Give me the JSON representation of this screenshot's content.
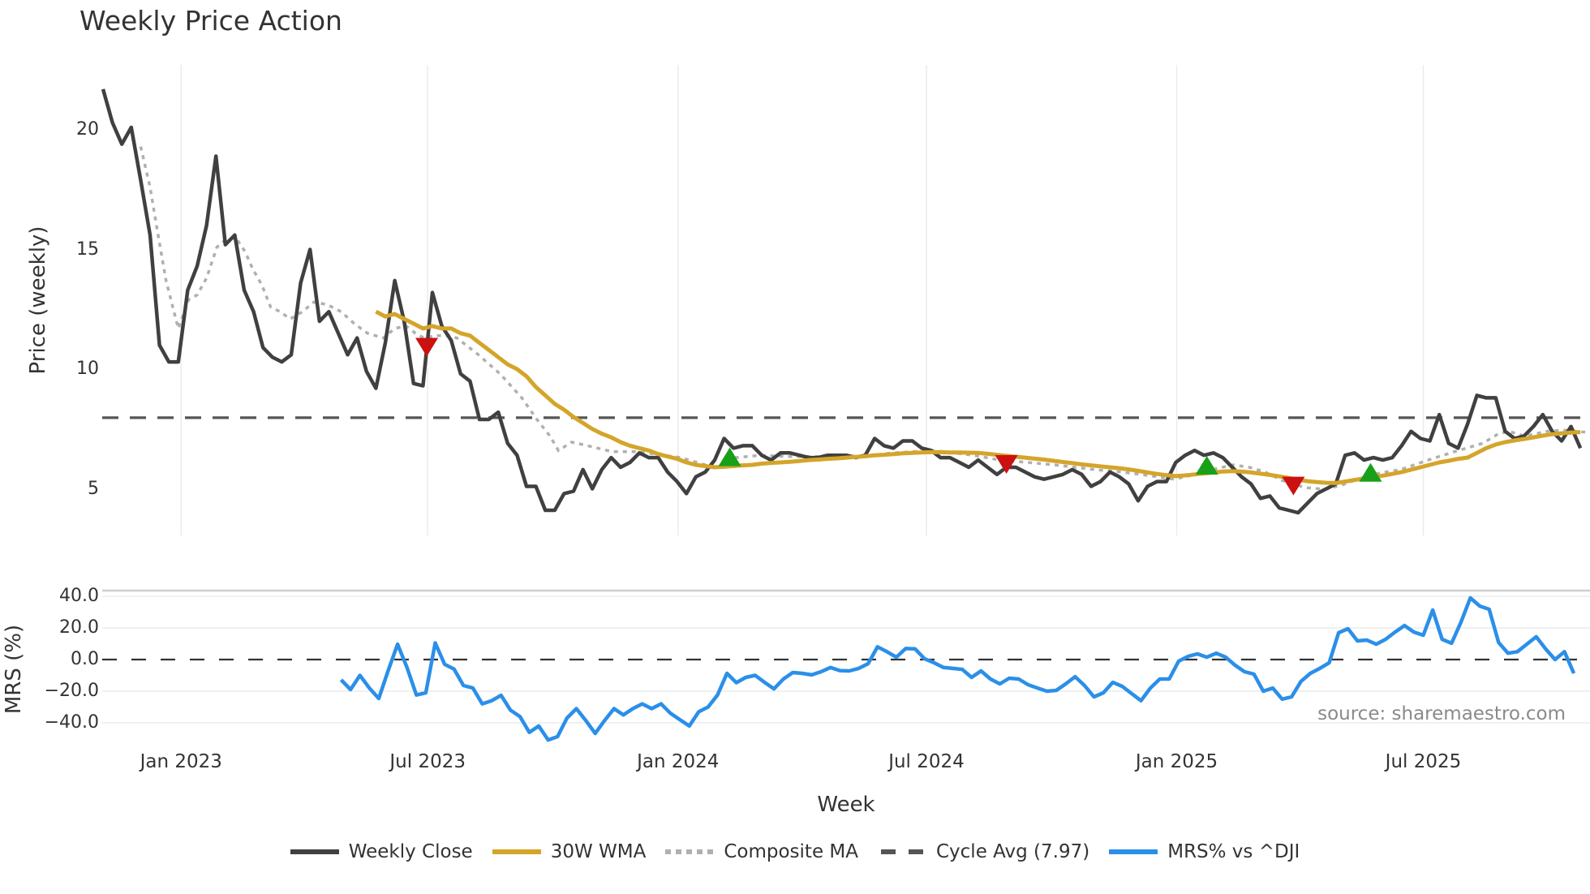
{
  "title": "Weekly Price Action",
  "source_note": "source: sharemaestro.com",
  "axes": {
    "price_ylabel": "Price (weekly)",
    "mrs_ylabel": "MRS (%)",
    "xlabel": "Week",
    "price_yticks": [
      {
        "label": "20",
        "value": 20
      },
      {
        "label": "15",
        "value": 15
      },
      {
        "label": "10",
        "value": 10
      },
      {
        "label": "5",
        "value": 5
      }
    ],
    "mrs_yticks": [
      {
        "label": "40.0",
        "value": 40
      },
      {
        "label": "20.0",
        "value": 20
      },
      {
        "label": "0.0",
        "value": 0
      },
      {
        "label": "−20.0",
        "value": -20
      },
      {
        "label": "−40.0",
        "value": -40
      }
    ],
    "xticks": [
      {
        "label": "Jan 2023",
        "week_index": 8.3
      },
      {
        "label": "Jul 2023",
        "week_index": 34.5
      },
      {
        "label": "Jan 2024",
        "week_index": 61.1
      },
      {
        "label": "Jul 2024",
        "week_index": 87.5
      },
      {
        "label": "Jan 2025",
        "week_index": 114.1
      },
      {
        "label": "Jul 2025",
        "week_index": 140.3
      }
    ]
  },
  "legend": [
    {
      "label": "Weekly Close",
      "style": "solid",
      "color": "#404040"
    },
    {
      "label": "30W WMA",
      "style": "solid",
      "color": "#d4a52a"
    },
    {
      "label": "Composite MA",
      "style": "dotted",
      "color": "#b0b0b0"
    },
    {
      "label": "Cycle Avg (7.97)",
      "style": "dashed",
      "color": "#555555"
    },
    {
      "label": "MRS% vs ^DJI",
      "style": "solid",
      "color": "#2b8fe8"
    }
  ],
  "colors": {
    "close": "#404040",
    "wma": "#d4a52a",
    "composite": "#b0b0b0",
    "cycle_avg": "#555555",
    "mrs": "#2b8fe8",
    "signal_buy": "#18a018",
    "signal_sell": "#cc1111",
    "grid": "#ececec"
  },
  "chart_data": [
    {
      "type": "line",
      "title": "Weekly Price Action",
      "xlabel": "Week",
      "ylabel": "Price (weekly)",
      "ylim": [
        2.6,
        23
      ],
      "grid": true,
      "legend_position": "bottom",
      "x_note": "weekly index 0..158, approx Nov 2022 to Oct 2025",
      "series": [
        {
          "name": "Weekly Close",
          "start_index": 0,
          "values": [
            21.7,
            20.3,
            19.4,
            20.1,
            17.9,
            15.6,
            11.0,
            10.3,
            10.3,
            13.3,
            14.3,
            16.0,
            18.9,
            15.2,
            15.6,
            13.3,
            12.4,
            10.9,
            10.5,
            10.3,
            10.6,
            13.6,
            15.0,
            12.0,
            12.4,
            11.5,
            10.6,
            11.3,
            9.9,
            9.2,
            11.1,
            13.7,
            12.0,
            9.4,
            9.3,
            13.2,
            11.8,
            11.2,
            9.8,
            9.5,
            7.9,
            7.9,
            8.2,
            6.9,
            6.4,
            5.1,
            5.1,
            4.1,
            4.1,
            4.8,
            4.9,
            5.8,
            5.0,
            5.8,
            6.3,
            5.9,
            6.1,
            6.5,
            6.3,
            6.3,
            5.7,
            5.3,
            4.8,
            5.5,
            5.7,
            6.2,
            7.1,
            6.7,
            6.8,
            6.8,
            6.4,
            6.2,
            6.5,
            6.5,
            6.4,
            6.3,
            6.3,
            6.4,
            6.4,
            6.4,
            6.3,
            6.4,
            7.1,
            6.8,
            6.7,
            7.0,
            7.0,
            6.7,
            6.6,
            6.3,
            6.3,
            6.1,
            5.9,
            6.2,
            5.9,
            5.6,
            5.9,
            5.9,
            5.7,
            5.5,
            5.4,
            5.5,
            5.6,
            5.8,
            5.6,
            5.1,
            5.3,
            5.7,
            5.5,
            5.2,
            4.5,
            5.1,
            5.3,
            5.3,
            6.1,
            6.4,
            6.6,
            6.4,
            6.5,
            6.3,
            5.9,
            5.5,
            5.2,
            4.6,
            4.7,
            4.2,
            4.1,
            4.0,
            4.4,
            4.8,
            5.0,
            5.2,
            6.4,
            6.5,
            6.2,
            6.3,
            6.2,
            6.3,
            6.8,
            7.4,
            7.1,
            7.0,
            8.1,
            6.9,
            6.7,
            7.7,
            8.9,
            8.8,
            8.8,
            7.4,
            7.1,
            7.2,
            7.6,
            8.1,
            7.4,
            7.0,
            7.6,
            6.7
          ]
        },
        {
          "name": "30W WMA",
          "start_index": 29,
          "values": [
            12.4,
            12.2,
            12.3,
            12.1,
            11.9,
            11.7,
            11.8,
            11.7,
            11.7,
            11.5,
            11.4,
            11.1,
            10.8,
            10.5,
            10.2,
            10.0,
            9.7,
            9.25,
            8.9,
            8.55,
            8.3,
            8.0,
            7.75,
            7.5,
            7.3,
            7.15,
            6.95,
            6.8,
            6.7,
            6.6,
            6.45,
            6.35,
            6.25,
            6.1,
            6.0,
            5.95,
            5.9,
            5.92,
            5.95,
            5.98,
            6.0,
            6.05,
            6.08,
            6.1,
            6.13,
            6.16,
            6.2,
            6.22,
            6.25,
            6.27,
            6.3,
            6.33,
            6.36,
            6.4,
            6.42,
            6.45,
            6.48,
            6.5,
            6.52,
            6.53,
            6.53,
            6.52,
            6.52,
            6.51,
            6.5,
            6.46,
            6.42,
            6.38,
            6.34,
            6.3,
            6.26,
            6.22,
            6.17,
            6.12,
            6.07,
            6.02,
            5.98,
            5.94,
            5.9,
            5.86,
            5.81,
            5.75,
            5.68,
            5.62,
            5.57,
            5.53,
            5.56,
            5.6,
            5.64,
            5.68,
            5.72,
            5.74,
            5.72,
            5.68,
            5.63,
            5.58,
            5.52,
            5.45,
            5.38,
            5.32,
            5.28,
            5.25,
            5.24,
            5.3,
            5.37,
            5.43,
            5.5,
            5.55,
            5.62,
            5.7,
            5.8,
            5.9,
            6.0,
            6.1,
            6.17,
            6.25,
            6.3,
            6.5,
            6.7,
            6.85,
            6.95,
            7.02,
            7.08,
            7.15,
            7.22,
            7.28,
            7.32,
            7.35,
            7.37
          ]
        },
        {
          "name": "Composite MA",
          "points": [
            [
              4.0,
              19.3
            ],
            [
              5.0,
              17.6
            ],
            [
              5.9,
              15.5
            ],
            [
              6.7,
              13.7
            ],
            [
              7.6,
              12.3
            ],
            [
              8.0,
              11.7
            ],
            [
              9.1,
              12.9
            ],
            [
              10.0,
              13.1
            ],
            [
              11.0,
              13.8
            ],
            [
              12.1,
              15.1
            ],
            [
              13.0,
              15.4
            ],
            [
              14.1,
              15.5
            ],
            [
              15.1,
              14.9
            ],
            [
              15.9,
              14.2
            ],
            [
              16.9,
              13.5
            ],
            [
              17.8,
              12.6
            ],
            [
              18.8,
              12.4
            ],
            [
              19.9,
              12.1
            ],
            [
              21.2,
              12.4
            ],
            [
              22.4,
              12.8
            ],
            [
              23.8,
              12.7
            ],
            [
              25.3,
              12.4
            ],
            [
              26.7,
              11.9
            ],
            [
              28.1,
              11.5
            ],
            [
              29.8,
              11.3
            ],
            [
              31.0,
              11.7
            ],
            [
              32.2,
              11.8
            ],
            [
              33.2,
              11.5
            ],
            [
              34.1,
              11.3
            ],
            [
              35.3,
              11.4
            ],
            [
              36.7,
              11.4
            ],
            [
              37.6,
              11.3
            ],
            [
              39.9,
              10.6
            ],
            [
              42.2,
              9.8
            ],
            [
              44.5,
              8.8
            ],
            [
              46.1,
              7.9
            ],
            [
              47.5,
              7.2
            ],
            [
              48.4,
              6.6
            ],
            [
              49.8,
              6.95
            ],
            [
              51.5,
              6.8
            ],
            [
              54.1,
              6.55
            ],
            [
              56.7,
              6.55
            ],
            [
              58.7,
              6.45
            ],
            [
              61.4,
              6.3
            ],
            [
              64.0,
              6.0
            ],
            [
              65.3,
              5.9
            ],
            [
              67.2,
              6.3
            ],
            [
              69.9,
              6.4
            ],
            [
              72.6,
              6.35
            ],
            [
              75.2,
              6.35
            ],
            [
              78.5,
              6.35
            ],
            [
              81.8,
              6.4
            ],
            [
              83.9,
              6.5
            ],
            [
              88.2,
              6.6
            ],
            [
              92.5,
              6.4
            ],
            [
              95.3,
              6.2
            ],
            [
              98.3,
              6.1
            ],
            [
              101.1,
              6.0
            ],
            [
              105.4,
              5.8
            ],
            [
              108.3,
              5.7
            ],
            [
              111.2,
              5.55
            ],
            [
              113.8,
              5.4
            ],
            [
              115.5,
              5.55
            ],
            [
              118.4,
              5.85
            ],
            [
              120.1,
              6.0
            ],
            [
              121.8,
              5.9
            ],
            [
              123.5,
              5.7
            ],
            [
              125.3,
              5.35
            ],
            [
              127.7,
              5.05
            ],
            [
              129.8,
              4.98
            ],
            [
              131.6,
              5.15
            ],
            [
              133.3,
              5.4
            ],
            [
              135.6,
              5.65
            ],
            [
              137.9,
              5.8
            ],
            [
              140.8,
              6.2
            ],
            [
              143.6,
              6.55
            ],
            [
              146.6,
              6.9
            ],
            [
              148.3,
              7.3
            ],
            [
              149.4,
              7.4
            ],
            [
              151.1,
              7.2
            ],
            [
              153.4,
              7.4
            ],
            [
              155.2,
              7.45
            ],
            [
              158.0,
              7.35
            ]
          ]
        },
        {
          "name": "Cycle Avg (7.97)",
          "constant": 7.97
        }
      ],
      "signals": [
        {
          "type": "sell",
          "marker": "down-triangle",
          "week_index": 34.4,
          "value": 11.0
        },
        {
          "type": "buy",
          "marker": "up-triangle",
          "week_index": 66.6,
          "value": 6.25
        },
        {
          "type": "sell",
          "marker": "down-triangle",
          "week_index": 96.0,
          "value": 6.1
        },
        {
          "type": "buy",
          "marker": "up-triangle",
          "week_index": 117.3,
          "value": 5.9
        },
        {
          "type": "sell",
          "marker": "down-triangle",
          "week_index": 126.5,
          "value": 5.2
        },
        {
          "type": "buy",
          "marker": "up-triangle",
          "week_index": 134.7,
          "value": 5.6
        }
      ]
    },
    {
      "type": "line",
      "title": "",
      "xlabel": "Week",
      "ylabel": "MRS (%)",
      "ylim": [
        -52,
        42
      ],
      "grid": true,
      "reference_line": 0,
      "series": [
        {
          "name": "MRS% vs ^DJI",
          "start_index": 25.3,
          "values": [
            -12.8,
            -19,
            -10,
            -18,
            -24.6,
            -7,
            9.7,
            -5,
            -22.4,
            -21,
            10.5,
            -3,
            -6,
            -16.4,
            -18,
            -28,
            -26,
            -22.6,
            -32,
            -36,
            -46,
            -42,
            -50.8,
            -48.7,
            -37,
            -31,
            -38.5,
            -46.7,
            -38.5,
            -31,
            -35,
            -31,
            -28,
            -31,
            -28,
            -34,
            -38,
            -42,
            -33,
            -30,
            -22.4,
            -8.7,
            -14.6,
            -11.3,
            -10,
            -14.4,
            -18.5,
            -12.3,
            -8.2,
            -8.7,
            -9.7,
            -7.7,
            -5,
            -7,
            -7.2,
            -5.6,
            -2.6,
            8,
            5,
            1.5,
            7,
            6.7,
            0.5,
            -2,
            -5,
            -5.6,
            -6.2,
            -11.3,
            -7.2,
            -12.3,
            -15.4,
            -11.8,
            -12.3,
            -15.9,
            -18,
            -20,
            -19.5,
            -15.4,
            -10.8,
            -16.4,
            -23.6,
            -21,
            -14.4,
            -16.9,
            -21.5,
            -26,
            -18,
            -12.3,
            -12.3,
            -1,
            2,
            3.6,
            1.5,
            4,
            1.5,
            -3.6,
            -7.7,
            -9.2,
            -20,
            -18,
            -25,
            -23.6,
            -13.8,
            -8.7,
            -5.6,
            -2,
            16.9,
            19.5,
            11.8,
            12.3,
            9.7,
            12.8,
            17.4,
            21.5,
            17.4,
            15.4,
            31.3,
            12.8,
            10.3,
            23.6,
            39,
            33.8,
            31.8,
            10.8,
            4,
            5,
            9.7,
            14.4,
            6.7,
            0,
            5,
            -8.7
          ]
        }
      ]
    }
  ]
}
